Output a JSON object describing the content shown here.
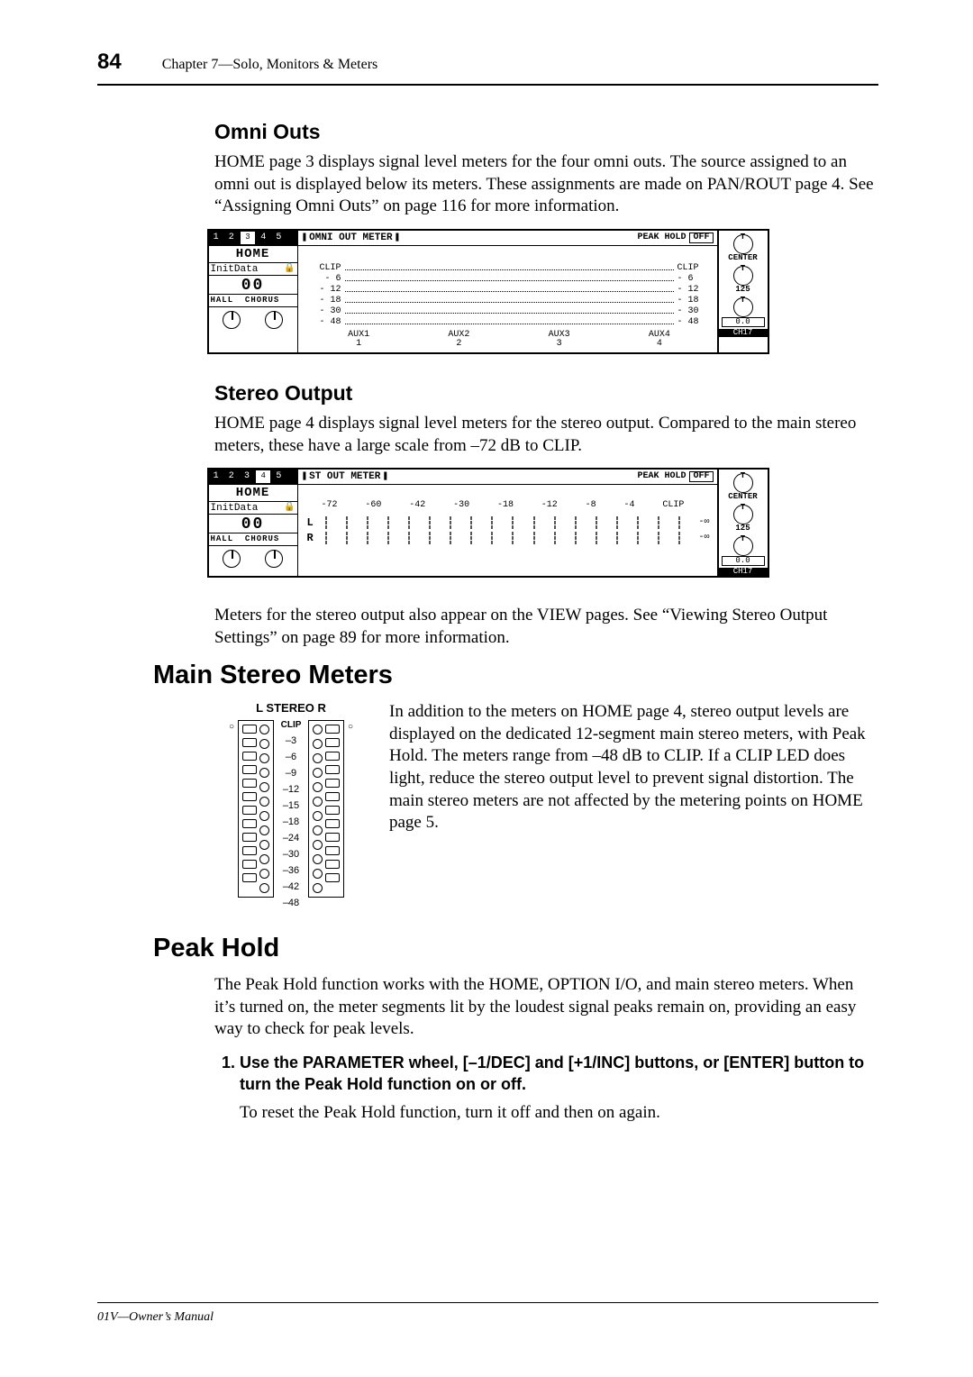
{
  "page_number": "84",
  "chapter_title": "Chapter 7—Solo, Monitors & Meters",
  "sections": {
    "omni": {
      "heading": "Omni Outs",
      "para": "HOME page 3 displays signal level meters for the four omni outs. The source assigned to an omni out is displayed below its meters. These assignments are made on PAN/ROUT page 4. See “Assigning Omni Outs” on page 116 for more information."
    },
    "stereo": {
      "heading": "Stereo Output",
      "para1": "HOME page 4 displays signal level meters for the stereo output. Compared to the main stereo meters, these have a large scale from –72 dB to CLIP.",
      "para2": "Meters for the stereo output also appear on the VIEW pages. See “Viewing Stereo Output Settings” on page 89 for more information."
    },
    "main": {
      "heading": "Main Stereo Meters",
      "para": "In addition to the meters on HOME page 4, stereo output levels are displayed on the dedicated 12-segment main stereo meters, with Peak Hold. The meters range from –48 dB to CLIP. If a CLIP LED does light, reduce the stereo output level to prevent signal distortion. The main stereo meters are not affected by the metering points on HOME page 5."
    },
    "peak": {
      "heading": "Peak Hold",
      "para1": "The Peak Hold function works with the HOME, OPTION I/O, and main stereo meters. When it’s turned on, the meter segments lit by the loudest signal peaks remain on, providing an easy way to check for peak levels.",
      "step1": "Use the PARAMETER wheel, [–1/DEC] and [+1/INC] buttons, or [ENTER] button to turn the Peak Hold function on or off.",
      "para2": "To reset the Peak Hold function, turn it off and then on again."
    }
  },
  "lcd_common": {
    "home": "HOME",
    "initdata": "InitData",
    "hall": "HALL",
    "chorus": "CHORUS",
    "zeros": "00",
    "peak_hold": "PEAK HOLD",
    "peak_state": "OFF",
    "pan_center": "CENTER",
    "pan_125": "125",
    "pan_val": "0.0",
    "ch_lbl": "CH17"
  },
  "lcd_omni": {
    "title": "OMNI OUT METER",
    "tab_active": "3",
    "scale": [
      "CLIP",
      "- 6",
      "- 12",
      "- 18",
      "- 30",
      "- 48"
    ],
    "scale_r": [
      "CLIP",
      "- 6",
      "- 12",
      "- 18",
      "- 30",
      "- 48"
    ],
    "aux": [
      {
        "t": "AUX1",
        "b": "1"
      },
      {
        "t": "AUX2",
        "b": "2"
      },
      {
        "t": "AUX3",
        "b": "3"
      },
      {
        "t": "AUX4",
        "b": "4"
      }
    ]
  },
  "lcd_st": {
    "title": "ST OUT METER",
    "tab_active": "4",
    "ticks": [
      "-72",
      "-60",
      "-42",
      "-30",
      "-18",
      "-12",
      "-8",
      "-4",
      "CLIP"
    ],
    "rows": [
      "L",
      "R"
    ],
    "inf": "-∞"
  },
  "stereo_meter_block": {
    "title": "L STEREO R",
    "labels": [
      "CLIP",
      "–3",
      "–6",
      "–9",
      "–12",
      "–15",
      "–18",
      "–24",
      "–30",
      "–36",
      "–42",
      "–48"
    ]
  },
  "step_number": "1.",
  "footer": "01V—Owner’s Manual"
}
